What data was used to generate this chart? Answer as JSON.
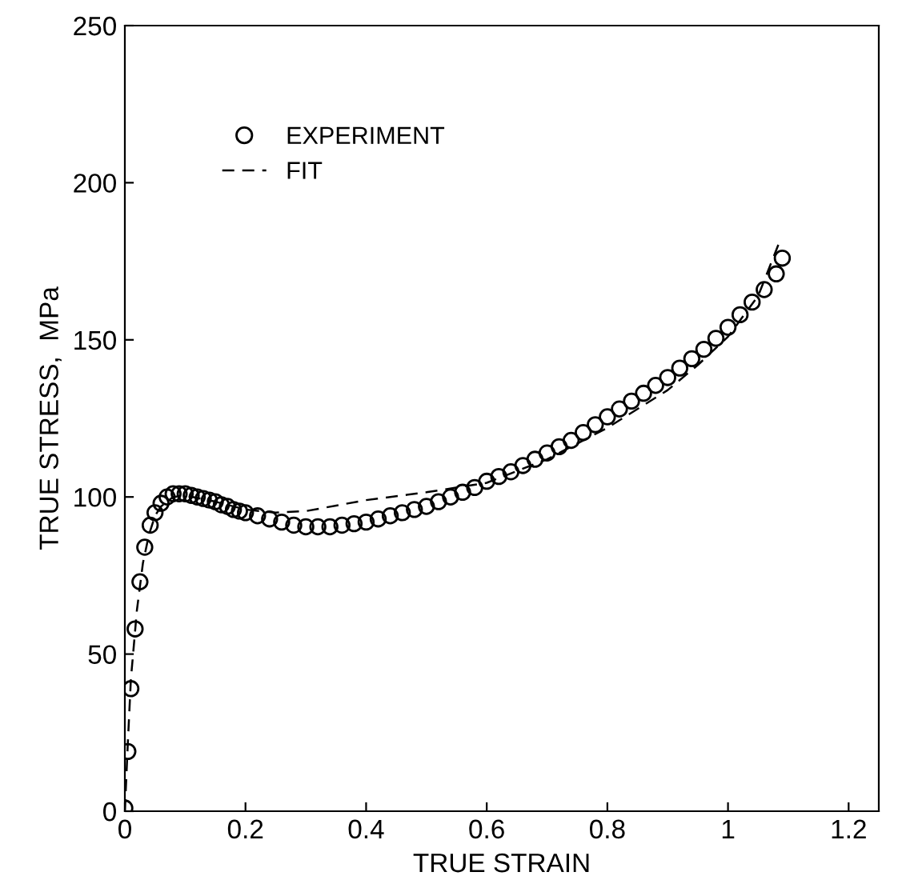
{
  "chart_data": {
    "type": "scatter",
    "xlabel": "TRUE STRAIN",
    "ylabel": "TRUE STRESS,  MPa",
    "xlim": [
      0,
      1.25
    ],
    "ylim": [
      0,
      250
    ],
    "xticks": [
      0,
      0.2,
      0.4,
      0.6,
      0.8,
      1,
      1.2
    ],
    "yticks": [
      0,
      50,
      100,
      150,
      200,
      250
    ],
    "grid": false,
    "legend": "top left",
    "series": [
      {
        "name": "EXPERIMENT",
        "color": "#000000",
        "marker": "circle",
        "x": [
          0,
          0.005,
          0.01,
          0.017,
          0.025,
          0.033,
          0.042,
          0.05,
          0.06,
          0.07,
          0.08,
          0.09,
          0.1,
          0.11,
          0.12,
          0.13,
          0.14,
          0.15,
          0.16,
          0.17,
          0.18,
          0.19,
          0.2,
          0.22,
          0.24,
          0.26,
          0.28,
          0.3,
          0.32,
          0.34,
          0.36,
          0.38,
          0.4,
          0.42,
          0.44,
          0.46,
          0.48,
          0.5,
          0.52,
          0.54,
          0.56,
          0.58,
          0.6,
          0.62,
          0.64,
          0.66,
          0.68,
          0.7,
          0.72,
          0.74,
          0.76,
          0.78,
          0.8,
          0.82,
          0.84,
          0.86,
          0.88,
          0.9,
          0.92,
          0.94,
          0.96,
          0.98,
          1.0,
          1.02,
          1.04,
          1.06,
          1.08,
          1.09
        ],
        "values": [
          1,
          19,
          39,
          58,
          73,
          84,
          91,
          95,
          98,
          100,
          101,
          101,
          101,
          100.5,
          100,
          99.5,
          99,
          98.5,
          97.5,
          97,
          96,
          95.5,
          95,
          94,
          93,
          92,
          91,
          90.5,
          90.5,
          90.5,
          91,
          91.5,
          92,
          93,
          94,
          95,
          96,
          97,
          98.5,
          100,
          101.5,
          103,
          105,
          106.5,
          108,
          110,
          112,
          114,
          116,
          118,
          120.5,
          123,
          125.5,
          128,
          130.5,
          133,
          135.5,
          138,
          141,
          144,
          147,
          150.5,
          154,
          158,
          162,
          166,
          171,
          176
        ]
      },
      {
        "name": "FIT",
        "type": "line",
        "color": "#000000",
        "line_style": "dashed",
        "marker": "none",
        "x": [
          0,
          0.005,
          0.01,
          0.02,
          0.03,
          0.04,
          0.05,
          0.06,
          0.08,
          0.1,
          0.15,
          0.2,
          0.25,
          0.3,
          0.4,
          0.5,
          0.6,
          0.7,
          0.8,
          0.9,
          0.95,
          1.0,
          1.05,
          1.085
        ],
        "values": [
          0,
          22,
          42,
          64,
          79,
          88,
          94,
          97,
          100,
          100.5,
          98.5,
          96,
          95,
          95.5,
          99,
          101.5,
          104.5,
          112,
          122,
          134,
          142,
          151,
          164,
          181
        ]
      }
    ]
  }
}
